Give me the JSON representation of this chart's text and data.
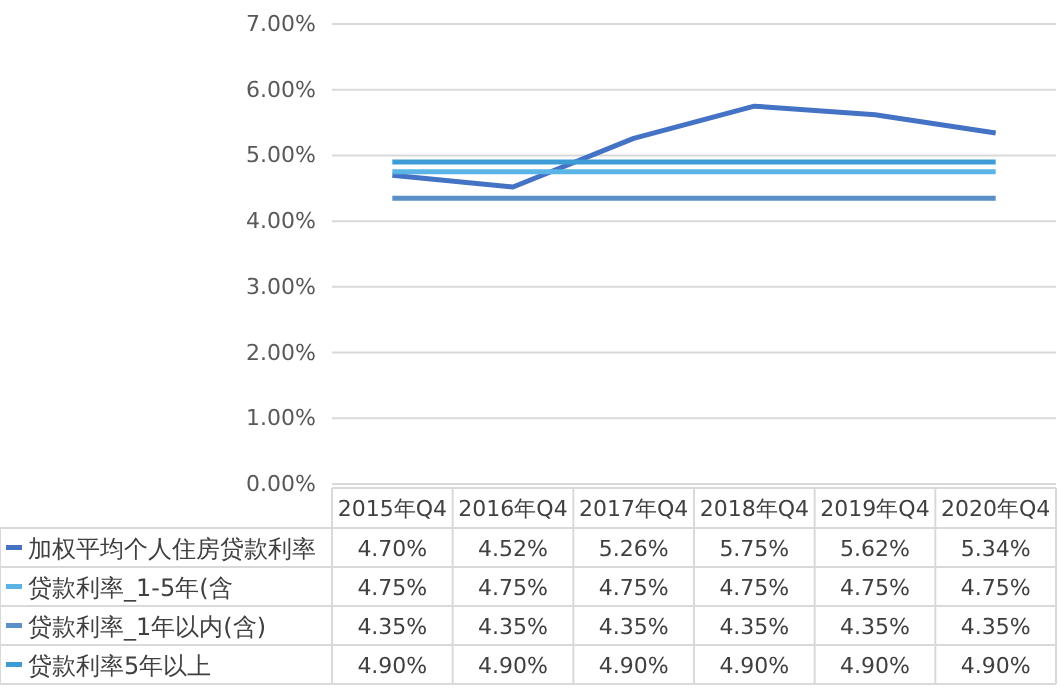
{
  "chart_data": {
    "type": "line",
    "categories": [
      "2015年Q4",
      "2016年Q4",
      "2017年Q4",
      "2018年Q4",
      "2019年Q4",
      "2020年Q4"
    ],
    "series": [
      {
        "name": "加权平均个人住房贷款利率",
        "color": "#4472c4",
        "values": [
          4.7,
          4.52,
          5.26,
          5.75,
          5.62,
          5.34
        ],
        "value_labels": [
          "4.70%",
          "4.52%",
          "5.26%",
          "5.75%",
          "5.62%",
          "5.34%"
        ]
      },
      {
        "name": "贷款利率_1-5年(含",
        "color": "#5ab4e5",
        "values": [
          4.75,
          4.75,
          4.75,
          4.75,
          4.75,
          4.75
        ],
        "value_labels": [
          "4.75%",
          "4.75%",
          "4.75%",
          "4.75%",
          "4.75%",
          "4.75%"
        ]
      },
      {
        "name": "贷款利率_1年以内(含)",
        "color": "#5a8fc8",
        "values": [
          4.35,
          4.35,
          4.35,
          4.35,
          4.35,
          4.35
        ],
        "value_labels": [
          "4.35%",
          "4.35%",
          "4.35%",
          "4.35%",
          "4.35%",
          "4.35%"
        ]
      },
      {
        "name": "贷款利率5年以上",
        "color": "#3d9bd5",
        "values": [
          4.9,
          4.9,
          4.9,
          4.9,
          4.9,
          4.9
        ],
        "value_labels": [
          "4.90%",
          "4.90%",
          "4.90%",
          "4.90%",
          "4.90%",
          "4.90%"
        ]
      }
    ],
    "ylim": [
      0,
      7
    ],
    "yticks": [
      {
        "value": 0,
        "label": "0.00%"
      },
      {
        "value": 1,
        "label": "1.00%"
      },
      {
        "value": 2,
        "label": "2.00%"
      },
      {
        "value": 3,
        "label": "3.00%"
      },
      {
        "value": 4,
        "label": "4.00%"
      },
      {
        "value": 5,
        "label": "5.00%"
      },
      {
        "value": 6,
        "label": "6.00%"
      },
      {
        "value": 7,
        "label": "7.00%"
      }
    ],
    "grid": "y",
    "legend": "bottom",
    "line_style": "solid"
  }
}
